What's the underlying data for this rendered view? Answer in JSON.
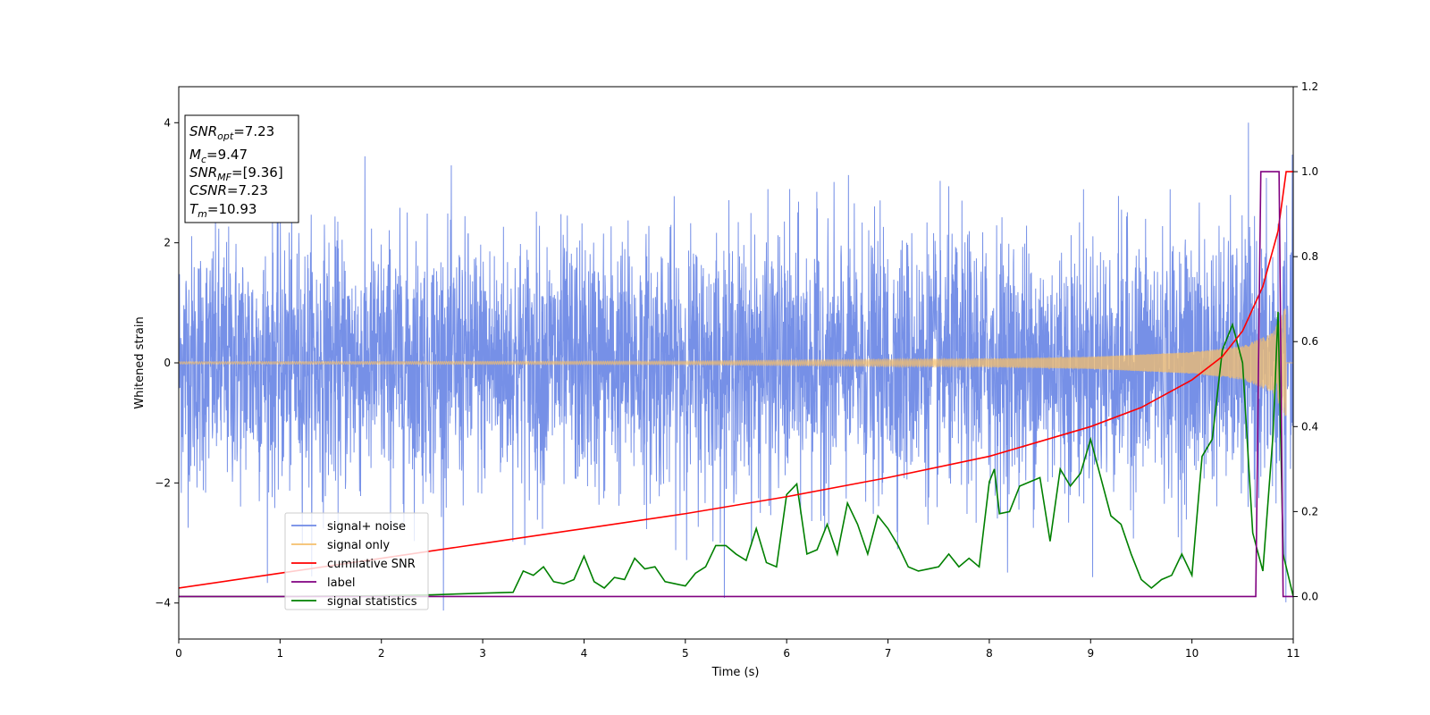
{
  "chart_data": {
    "type": "line",
    "xlabel": "Time (s)",
    "ylabel": "Whitened strain",
    "xlim": [
      0,
      11
    ],
    "ylim_left": [
      -4.6,
      4.6
    ],
    "ylim_right": [
      -0.1,
      1.2
    ],
    "x_ticks": [
      0,
      1,
      2,
      3,
      4,
      5,
      6,
      7,
      8,
      9,
      10,
      11
    ],
    "y_ticks_left": [
      -4,
      -2,
      0,
      2,
      4
    ],
    "y_ticks_right": [
      0.0,
      0.2,
      0.4,
      0.6,
      0.8,
      1.0,
      1.2
    ],
    "x_tick_labels": [
      "0",
      "1",
      "2",
      "3",
      "4",
      "5",
      "6",
      "7",
      "8",
      "9",
      "10",
      "11"
    ],
    "y_tick_labels_left": [
      "−4",
      "−2",
      "0",
      "2",
      "4"
    ],
    "y_tick_labels_right": [
      "0.0",
      "0.2",
      "0.4",
      "0.6",
      "0.8",
      "1.0",
      "1.2"
    ],
    "legend_position": "lower-left",
    "info_box": {
      "snr_opt": {
        "main": "SNR",
        "sub": "opt",
        "value": "=7.23"
      },
      "mc": {
        "main": "M",
        "sub": "c",
        "value": "=9.47"
      },
      "snr_mf": {
        "main": "SNR",
        "sub": "MF",
        "value": "=[9.36]"
      },
      "csnr": {
        "main": "CSNR",
        "sub": "",
        "value": "=7.23"
      },
      "tm": {
        "main": "T",
        "sub": "m",
        "value": "=10.93"
      }
    },
    "series": [
      {
        "name": "signal+ noise",
        "axis": "left",
        "color": "#6f8ae6",
        "description_envelope": {
          "typical_range": [
            -2.5,
            2.5
          ],
          "max": 4.2,
          "min": -4.1
        }
      },
      {
        "name": "signal only",
        "axis": "left",
        "color": "#f5bf6b",
        "amplitude_envelope": {
          "x": [
            0,
            5,
            8,
            9,
            10,
            10.5,
            10.8,
            10.93
          ],
          "amp": [
            0.02,
            0.03,
            0.07,
            0.1,
            0.18,
            0.28,
            0.5,
            0.95
          ]
        }
      },
      {
        "name": "cumilative SNR",
        "axis": "right",
        "color": "#ff0000",
        "x": [
          0,
          1,
          2,
          3,
          4,
          5,
          6,
          7,
          8,
          9,
          9.5,
          10,
          10.3,
          10.5,
          10.7,
          10.85,
          10.93,
          11
        ],
        "y": [
          0.02,
          0.055,
          0.09,
          0.125,
          0.16,
          0.195,
          0.235,
          0.28,
          0.33,
          0.4,
          0.445,
          0.51,
          0.565,
          0.625,
          0.73,
          0.86,
          1.0,
          1.0
        ]
      },
      {
        "name": "label",
        "axis": "right",
        "color": "#800080",
        "x": [
          0,
          10.63,
          10.68,
          10.86,
          10.9,
          11
        ],
        "y": [
          0,
          0,
          1,
          1,
          0,
          0
        ]
      },
      {
        "name": "signal statistics",
        "axis": "right",
        "color": "#008000",
        "x": [
          0,
          1,
          2,
          2.5,
          3,
          3.3,
          3.4,
          3.5,
          3.6,
          3.7,
          3.8,
          3.9,
          4.0,
          4.1,
          4.2,
          4.3,
          4.4,
          4.5,
          4.6,
          4.7,
          4.8,
          4.9,
          5.0,
          5.1,
          5.2,
          5.3,
          5.4,
          5.5,
          5.6,
          5.7,
          5.8,
          5.9,
          6.0,
          6.1,
          6.2,
          6.3,
          6.4,
          6.5,
          6.6,
          6.7,
          6.8,
          6.9,
          7.0,
          7.1,
          7.2,
          7.3,
          7.4,
          7.5,
          7.6,
          7.7,
          7.8,
          7.9,
          8.0,
          8.05,
          8.1,
          8.2,
          8.3,
          8.4,
          8.5,
          8.6,
          8.7,
          8.8,
          8.9,
          9.0,
          9.1,
          9.2,
          9.3,
          9.4,
          9.5,
          9.6,
          9.7,
          9.8,
          9.9,
          10.0,
          10.1,
          10.2,
          10.3,
          10.4,
          10.5,
          10.6,
          10.7,
          10.8,
          10.85,
          10.9,
          11.0
        ],
        "y": [
          0,
          0,
          0.002,
          0.004,
          0.008,
          0.01,
          0.06,
          0.05,
          0.07,
          0.035,
          0.03,
          0.04,
          0.095,
          0.035,
          0.02,
          0.045,
          0.04,
          0.09,
          0.065,
          0.07,
          0.035,
          0.03,
          0.025,
          0.055,
          0.07,
          0.12,
          0.12,
          0.1,
          0.085,
          0.16,
          0.08,
          0.07,
          0.24,
          0.265,
          0.1,
          0.11,
          0.17,
          0.1,
          0.22,
          0.17,
          0.1,
          0.19,
          0.16,
          0.12,
          0.07,
          0.06,
          0.065,
          0.07,
          0.1,
          0.07,
          0.09,
          0.07,
          0.27,
          0.3,
          0.195,
          0.2,
          0.26,
          0.27,
          0.28,
          0.13,
          0.3,
          0.26,
          0.29,
          0.37,
          0.28,
          0.19,
          0.17,
          0.1,
          0.04,
          0.02,
          0.04,
          0.05,
          0.1,
          0.05,
          0.33,
          0.37,
          0.58,
          0.64,
          0.55,
          0.15,
          0.06,
          0.38,
          0.67,
          0.1,
          0.0
        ]
      }
    ]
  }
}
